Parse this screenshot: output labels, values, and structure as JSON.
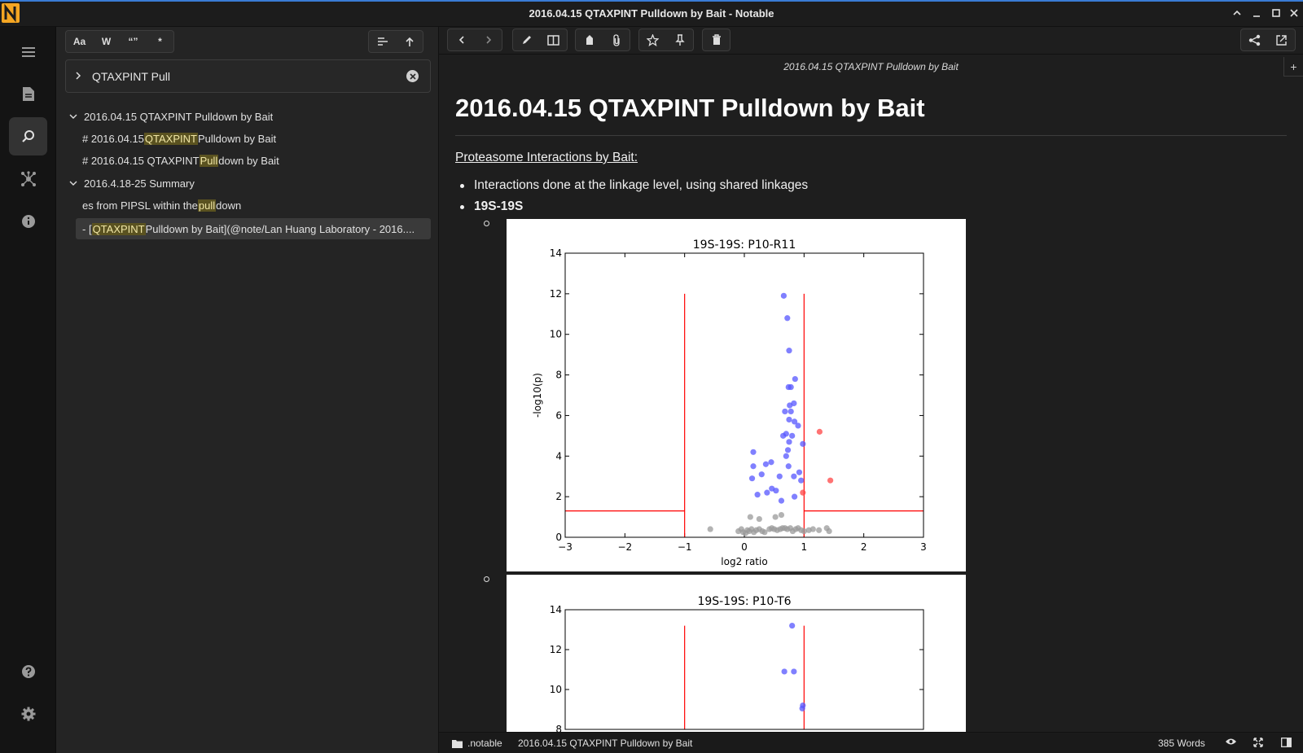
{
  "window": {
    "title": "2016.04.15 QTAXPINT Pulldown by Bait - Notable"
  },
  "activity_bar": {
    "items": [
      {
        "name": "menu-icon"
      },
      {
        "name": "notes-icon"
      },
      {
        "name": "search-icon",
        "active": true
      },
      {
        "name": "graph-icon"
      },
      {
        "name": "info-icon"
      }
    ],
    "bottom": [
      {
        "name": "help-icon"
      },
      {
        "name": "settings-icon"
      }
    ]
  },
  "search_panel": {
    "toggles": {
      "case": "Aa",
      "word": "W",
      "regex_quotes": "“”",
      "regex": "*"
    },
    "query": "QTAXPINT Pull",
    "results": [
      {
        "type": "file",
        "label": "2016.04.15 QTAXPINT Pulldown by Bait"
      },
      {
        "type": "match",
        "pre": "# 2016.04.15 ",
        "hl": "QTAXPINT",
        "post": " Pulldown by Bait"
      },
      {
        "type": "match",
        "pre": "# 2016.04.15 QTAXPINT ",
        "hl": "Pull",
        "post": "down by Bait"
      },
      {
        "type": "file",
        "label": "2016.4.18-25 Summary"
      },
      {
        "type": "match",
        "pre": "es from PIPSL within the ",
        "hl": "pull",
        "post": "down"
      },
      {
        "type": "match",
        "pre": "- [",
        "hl": "QTAXPINT",
        "post": " Pulldown by Bait](@note/Lan Huang Laboratory - 2016....",
        "selected": true
      }
    ]
  },
  "note": {
    "header": "2016.04.15 QTAXPINT Pulldown by Bait",
    "title": "2016.04.15 QTAXPINT Pulldown by Bait",
    "subtitle": "Proteasome Interactions by Bait:",
    "bullets": [
      "Interactions done at the linkage level, using shared linkages",
      "19S-19S"
    ]
  },
  "chart_data": [
    {
      "type": "scatter",
      "title": "19S-19S: P10-R11",
      "xlabel": "log2 ratio",
      "ylabel": "-log10(p)",
      "xlim": [
        -3,
        3
      ],
      "ylim": [
        0,
        14
      ],
      "xticks": [
        "−3",
        "−2",
        "−1",
        "0",
        "1",
        "2",
        "3"
      ],
      "yticks": [
        "0",
        "2",
        "4",
        "6",
        "8",
        "10",
        "12",
        "14"
      ],
      "threshold_lines": {
        "x": [
          -1,
          1
        ],
        "y": 1.3,
        "top": 12,
        "color": "#ff0000"
      },
      "series": [
        {
          "color": "#5555ff",
          "points": [
            [
              0.66,
              11.9
            ],
            [
              0.72,
              10.8
            ],
            [
              0.75,
              9.2
            ],
            [
              0.85,
              7.8
            ],
            [
              0.74,
              7.4
            ],
            [
              0.78,
              7.4
            ],
            [
              0.76,
              6.5
            ],
            [
              0.83,
              6.6
            ],
            [
              0.78,
              6.2
            ],
            [
              0.68,
              6.2
            ],
            [
              0.75,
              5.8
            ],
            [
              0.84,
              5.7
            ],
            [
              0.9,
              5.5
            ],
            [
              0.7,
              5.1
            ],
            [
              0.65,
              5.0
            ],
            [
              0.8,
              5.0
            ],
            [
              0.75,
              4.7
            ],
            [
              0.98,
              4.6
            ],
            [
              0.73,
              4.3
            ],
            [
              0.15,
              4.2
            ],
            [
              0.7,
              4.0
            ],
            [
              0.45,
              3.7
            ],
            [
              0.36,
              3.6
            ],
            [
              0.74,
              3.5
            ],
            [
              0.15,
              3.5
            ],
            [
              0.92,
              3.2
            ],
            [
              0.29,
              3.1
            ],
            [
              0.59,
              3.0
            ],
            [
              0.83,
              3.0
            ],
            [
              0.95,
              2.8
            ],
            [
              0.13,
              2.9
            ],
            [
              0.46,
              2.4
            ],
            [
              0.53,
              2.3
            ],
            [
              0.38,
              2.2
            ],
            [
              0.22,
              2.1
            ],
            [
              0.84,
              2.0
            ],
            [
              0.62,
              1.8
            ]
          ]
        },
        {
          "color": "#ff4444",
          "points": [
            [
              1.26,
              5.2
            ],
            [
              1.44,
              2.8
            ],
            [
              0.98,
              2.2
            ]
          ]
        },
        {
          "color": "#999999",
          "points": [
            [
              0.1,
              1.0
            ],
            [
              0.25,
              0.9
            ],
            [
              0.52,
              1.0
            ],
            [
              0.62,
              1.1
            ],
            [
              -0.57,
              0.4
            ],
            [
              -0.1,
              0.3
            ],
            [
              -0.05,
              0.4
            ],
            [
              -0.02,
              0.25
            ],
            [
              0.02,
              0.2
            ],
            [
              0.05,
              0.35
            ],
            [
              0.08,
              0.3
            ],
            [
              0.12,
              0.4
            ],
            [
              0.16,
              0.25
            ],
            [
              0.2,
              0.35
            ],
            [
              0.25,
              0.4
            ],
            [
              0.3,
              0.3
            ],
            [
              0.34,
              0.25
            ],
            [
              0.42,
              0.4
            ],
            [
              0.46,
              0.45
            ],
            [
              0.5,
              0.4
            ],
            [
              0.55,
              0.35
            ],
            [
              0.6,
              0.4
            ],
            [
              0.64,
              0.45
            ],
            [
              0.68,
              0.45
            ],
            [
              0.72,
              0.4
            ],
            [
              0.77,
              0.45
            ],
            [
              0.81,
              0.3
            ],
            [
              0.86,
              0.4
            ],
            [
              0.9,
              0.45
            ],
            [
              0.95,
              0.35
            ],
            [
              1.0,
              0.3
            ],
            [
              1.08,
              0.35
            ],
            [
              1.15,
              0.4
            ],
            [
              1.25,
              0.35
            ],
            [
              1.38,
              0.45
            ],
            [
              1.42,
              0.3
            ]
          ]
        }
      ]
    },
    {
      "type": "scatter",
      "title": "19S-19S: P10-T6",
      "ylim": [
        8,
        14
      ],
      "yticks": [
        "8",
        "10",
        "12",
        "14"
      ],
      "threshold_lines": {
        "x": [
          -1,
          1
        ],
        "top": 13.2,
        "color": "#ff0000"
      },
      "series": [
        {
          "color": "#5555ff",
          "points": [
            [
              0.8,
              13.2
            ],
            [
              0.67,
              10.9
            ],
            [
              0.83,
              10.9
            ],
            [
              0.98,
              9.2
            ],
            [
              0.97,
              9.05
            ]
          ]
        }
      ]
    }
  ],
  "statusbar": {
    "folder": ".notable",
    "note": "2016.04.15 QTAXPINT Pulldown by Bait",
    "words": "385 Words"
  }
}
